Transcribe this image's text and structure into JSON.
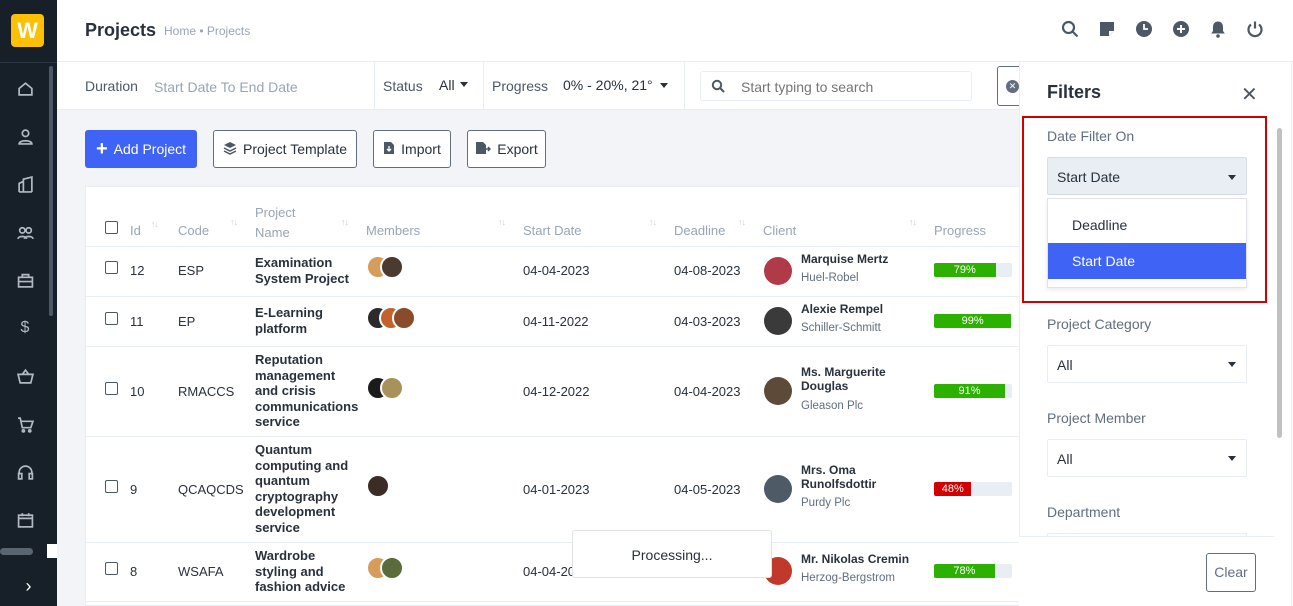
{
  "app": {
    "logo_letter": "W",
    "accent": "#3f63f5",
    "brand": "#fcc004"
  },
  "sidebar": {
    "icons": [
      "home-icon",
      "user-icon",
      "building-icon",
      "users-icon",
      "briefcase-icon",
      "dollar-icon",
      "basket-icon",
      "cart-icon",
      "headset-icon",
      "calendar-icon"
    ],
    "collapse_glyph": "›"
  },
  "header": {
    "title": "Projects",
    "breadcrumb": "Home • Projects",
    "icons": [
      "search-icon",
      "sticky-note-icon",
      "clock-icon",
      "plus-circle-icon",
      "bell-icon",
      "power-icon"
    ]
  },
  "filterbar": {
    "duration_label": "Duration",
    "duration_value": "Start Date To End Date",
    "status_label": "Status",
    "status_value": "All",
    "progress_label": "Progress",
    "progress_value": "0% - 20%, 21°",
    "search_placeholder": "Start typing to search"
  },
  "toolbar": {
    "add_label": "Add Project",
    "template_label": "Project Template",
    "import_label": "Import",
    "export_label": "Export"
  },
  "table": {
    "headers": {
      "id": "Id",
      "code": "Code",
      "project_name_1": "Project",
      "project_name_2": "Name",
      "members": "Members",
      "start_date": "Start Date",
      "deadline": "Deadline",
      "client": "Client",
      "progress": "Progress"
    },
    "rows": [
      {
        "id": "12",
        "code": "ESP",
        "name": "Examination System Project",
        "start": "04-04-2023",
        "deadline": "04-08-2023",
        "client": "Marquise Mertz",
        "company": "Huel-Robel",
        "progress": 79,
        "progress_label": "79%",
        "color": "#2cb100"
      },
      {
        "id": "11",
        "code": "EP",
        "name": "E-Learning platform",
        "start": "04-11-2022",
        "deadline": "04-03-2023",
        "client": "Alexie Rempel",
        "company": "Schiller-Schmitt",
        "progress": 99,
        "progress_label": "99%",
        "color": "#2cb100"
      },
      {
        "id": "10",
        "code": "RMACCS",
        "name": "Reputation management and crisis communications service",
        "start": "04-12-2022",
        "deadline": "04-04-2023",
        "client": "Ms. Marguerite Douglas",
        "company": "Gleason Plc",
        "progress": 91,
        "progress_label": "91%",
        "color": "#2cb100"
      },
      {
        "id": "9",
        "code": "QCAQCDS",
        "name": "Quantum computing and quantum cryptography development service",
        "start": "04-01-2023",
        "deadline": "04-05-2023",
        "client": "Mrs. Oma Runolfsdottir",
        "company": "Purdy Plc",
        "progress": 48,
        "progress_label": "48%",
        "color": "#d30000"
      },
      {
        "id": "8",
        "code": "WSAFA",
        "name": "Wardrobe styling and fashion advice",
        "start": "04-04-20",
        "deadline": "",
        "client": "Mr. Nikolas Cremin",
        "company": "Herzog-Bergstrom",
        "progress": 78,
        "progress_label": "78%",
        "color": "#2cb100"
      }
    ]
  },
  "processing_text": "Processing...",
  "filters_panel": {
    "title": "Filters",
    "close_glyph": "✕",
    "date_filter_label": "Date Filter On",
    "date_filter_value": "Start Date",
    "date_filter_options": [
      "Deadline",
      "Start Date"
    ],
    "category_label": "Project Category",
    "category_value": "All",
    "member_label": "Project Member",
    "member_value": "All",
    "department_label": "Department",
    "clear_label": "Clear"
  }
}
